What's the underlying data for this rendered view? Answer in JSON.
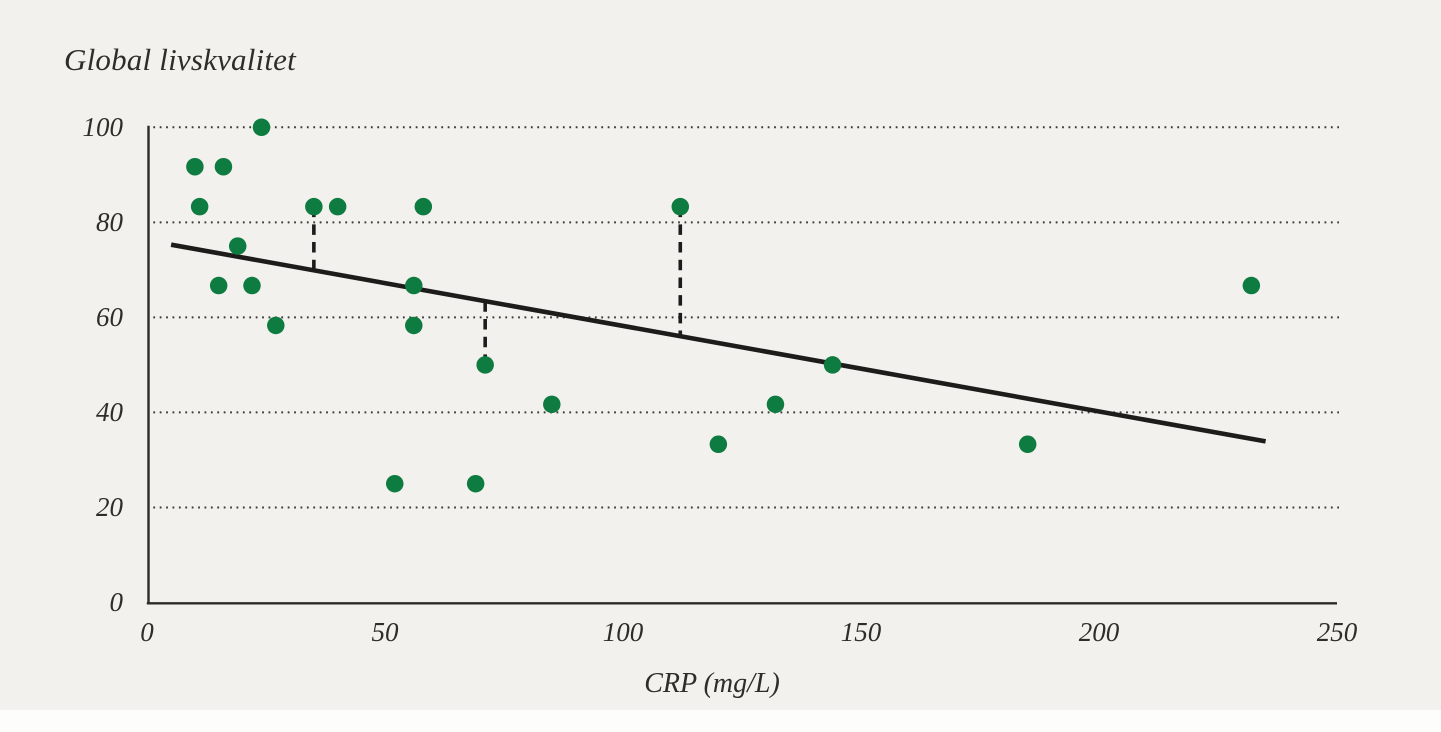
{
  "page": {
    "background_color": "#f2f1ed",
    "bottom_strip_color": "#fdfdfc",
    "text_color": "#2e2d2a"
  },
  "chart_data": {
    "type": "scatter",
    "title": "Global livskvalitet",
    "xlabel": "CRP (mg/L)",
    "ylabel": "Global livskvalitet",
    "xlim": [
      0,
      250
    ],
    "ylim": [
      0,
      100
    ],
    "x_ticks": [
      0,
      50,
      100,
      150,
      200,
      250
    ],
    "y_ticks": [
      0,
      20,
      40,
      60,
      80,
      100
    ],
    "x_tick_labels": [
      "0",
      "50",
      "100",
      "150",
      "200",
      "250"
    ],
    "y_tick_labels": [
      "100",
      "80",
      "60",
      "40",
      "20",
      "0"
    ],
    "grid": "horizontal-dotted",
    "legend": "none",
    "point_color": "#0e7b40",
    "line_color": "#1d1c1a",
    "axis_color": "#2c2b28",
    "grid_color": "#3a3936",
    "points": [
      {
        "x": 24,
        "y": 100
      },
      {
        "x": 10,
        "y": 91.7
      },
      {
        "x": 16,
        "y": 91.7
      },
      {
        "x": 11,
        "y": 83.3
      },
      {
        "x": 35,
        "y": 83.3
      },
      {
        "x": 40,
        "y": 83.3
      },
      {
        "x": 58,
        "y": 83.3
      },
      {
        "x": 112,
        "y": 83.3
      },
      {
        "x": 19,
        "y": 75
      },
      {
        "x": 15,
        "y": 66.7
      },
      {
        "x": 22,
        "y": 66.7
      },
      {
        "x": 56,
        "y": 66.7
      },
      {
        "x": 232,
        "y": 66.7
      },
      {
        "x": 27,
        "y": 58.3
      },
      {
        "x": 56,
        "y": 58.3
      },
      {
        "x": 71,
        "y": 50
      },
      {
        "x": 144,
        "y": 50
      },
      {
        "x": 85,
        "y": 41.7
      },
      {
        "x": 132,
        "y": 41.7
      },
      {
        "x": 120,
        "y": 33.3
      },
      {
        "x": 185,
        "y": 33.3
      },
      {
        "x": 52,
        "y": 25
      },
      {
        "x": 69,
        "y": 25
      }
    ],
    "trend_line": {
      "x1": 5,
      "y1": 75.3,
      "x2": 235,
      "y2": 33.9
    },
    "residual_dashes": [
      {
        "x": 35,
        "y_point": 83.3,
        "y_line": 69.9
      },
      {
        "x": 71,
        "y_point": 50,
        "y_line": 63.4
      },
      {
        "x": 112,
        "y_point": 83.3,
        "y_line": 56.0
      }
    ]
  }
}
